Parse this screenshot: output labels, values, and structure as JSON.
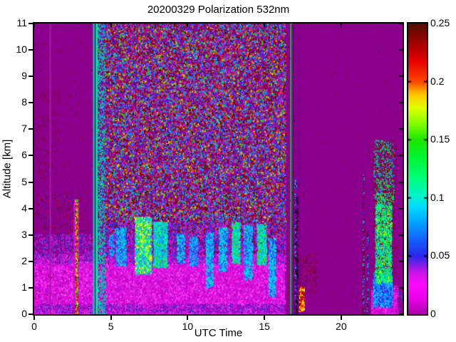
{
  "chart_data": {
    "type": "heatmap",
    "title": "20200329 Polarization 532nm",
    "xlabel": "UTC Time",
    "ylabel": "Altitude [km]",
    "x_range": [
      0,
      24
    ],
    "y_range": [
      0,
      11
    ],
    "x_ticks": [
      0,
      5,
      10,
      15,
      20
    ],
    "x_tick_labels": [
      "0",
      "5",
      "10",
      "15",
      "20"
    ],
    "y_ticks": [
      0,
      1,
      2,
      3,
      4,
      5,
      6,
      7,
      8,
      9,
      10,
      11
    ],
    "y_tick_labels": [
      "0",
      "1",
      "2",
      "3",
      "4",
      "5",
      "6",
      "7",
      "8",
      "9",
      "10",
      "11"
    ],
    "grid": false,
    "background_color": "#8C008E",
    "colorbar": {
      "min": 0,
      "max": 0.25,
      "ticks": [
        0,
        0.05,
        0.1,
        0.15,
        0.2,
        0.25
      ],
      "tick_labels": [
        "0",
        "0.05",
        "0.1",
        "0.15",
        "0.2",
        "0.25"
      ],
      "gradient_stops": [
        [
          0.0,
          "#AA00AA"
        ],
        [
          0.05,
          "#E600E6"
        ],
        [
          0.1,
          "#FF0AFF"
        ],
        [
          0.145,
          "#C814E8"
        ],
        [
          0.2,
          "#2828E8"
        ],
        [
          0.26,
          "#1464FF"
        ],
        [
          0.32,
          "#00A8FF"
        ],
        [
          0.37,
          "#00DCFF"
        ],
        [
          0.41,
          "#00F5C8"
        ],
        [
          0.47,
          "#00FF78"
        ],
        [
          0.54,
          "#00F532"
        ],
        [
          0.6,
          "#1EE600"
        ],
        [
          0.66,
          "#8CFF00"
        ],
        [
          0.71,
          "#E1FF00"
        ],
        [
          0.755,
          "#FFC800"
        ],
        [
          0.8,
          "#FF4600"
        ],
        [
          0.87,
          "#E60000"
        ],
        [
          0.93,
          "#A50000"
        ],
        [
          1.0,
          "#501000"
        ]
      ]
    },
    "regions": [
      {
        "name": "boundary-layer",
        "type": "fill",
        "x": [
          0,
          16.35
        ],
        "y": [
          0,
          2.28
        ],
        "color": "#DE12DE"
      },
      {
        "name": "boundary-layer-mottle",
        "type": "speckle",
        "x": [
          0,
          16.35
        ],
        "y": [
          0,
          2.28
        ],
        "colors": [
          "#EE2CEE",
          "#C800C8",
          "#B414D2",
          "#F046F0"
        ],
        "density": 0.14,
        "size": 2
      },
      {
        "name": "boundary-top-transition",
        "type": "speckle",
        "x": [
          0,
          16.35
        ],
        "y": [
          1.95,
          3.05
        ],
        "colors": [
          "#DE12DE",
          "#8C008E",
          "#6A2ACD",
          "#B022C8",
          "#4433CC"
        ],
        "density": 0.22,
        "size": 2
      },
      {
        "name": "pink-tower",
        "type": "fill",
        "x": [
          2.56,
          2.92
        ],
        "y": [
          0,
          4.35
        ],
        "color": "#CE14CE"
      },
      {
        "name": "surface-blue-band",
        "type": "speckle",
        "x": [
          0,
          16.35
        ],
        "y": [
          0.06,
          0.4
        ],
        "colors": [
          "#2A2ACD",
          "#4416B4",
          "#6A00AA",
          "#2A55E6",
          "#8800AA"
        ],
        "density": 0.35,
        "size": 1
      },
      {
        "name": "left-sparse-speckle",
        "type": "speckle",
        "x": [
          0.05,
          3.95
        ],
        "y": [
          0,
          11
        ],
        "colors": [
          "#5A0000",
          "#8B0000",
          "#320000"
        ],
        "density": 0.013,
        "size": 1
      },
      {
        "name": "left-cluster-mid",
        "type": "speckle",
        "x": [
          0.05,
          1.65
        ],
        "y": [
          5.1,
          8.6
        ],
        "colors": [
          "#5A0000",
          "#8B0000",
          "#3A0000"
        ],
        "density": 0.05,
        "size": 1
      },
      {
        "name": "left-cluster-low",
        "type": "speckle",
        "x": [
          0.05,
          3.2
        ],
        "y": [
          3.15,
          4.6
        ],
        "colors": [
          "#5A0000",
          "#8B0000",
          "#B22222",
          "#2A2ACD"
        ],
        "density": 0.1,
        "size": 1
      },
      {
        "name": "faint-vline-1utc",
        "type": "vline",
        "x": 1.05,
        "width": 2,
        "y": [
          0,
          11
        ],
        "color": "#AD17AD"
      },
      {
        "name": "orange-dust-line",
        "type": "vline_speckle",
        "x": 2.73,
        "width": 3,
        "y": [
          0,
          4.35
        ],
        "colors": [
          "#FFC800",
          "#FF6400",
          "#C80000",
          "#8B0000",
          "#FFFF32",
          "#00C832"
        ],
        "density": 0.75
      },
      {
        "name": "cyan-stripe-a",
        "type": "vline",
        "x": 3.88,
        "width": 2,
        "y": [
          0,
          11
        ],
        "color": "#00DCB4"
      },
      {
        "name": "cyan-stripe-dark",
        "type": "vline",
        "x": 3.98,
        "width": 2,
        "y": [
          0,
          11
        ],
        "color": "#00785A"
      },
      {
        "name": "cyan-stripe-b",
        "type": "vline",
        "x": 4.08,
        "width": 2,
        "y": [
          0,
          11
        ],
        "color": "#00FFB4"
      },
      {
        "name": "cyan-speckle-column",
        "type": "vline_speckle",
        "x": 4.38,
        "width": 11,
        "y": [
          0,
          11
        ],
        "colors": [
          "#00C8E6",
          "#00E6A0",
          "#1E90FF",
          "#8C008E",
          "#2ACD2A",
          "#00AACC"
        ],
        "density": 0.38
      },
      {
        "name": "noise-field",
        "type": "speckle",
        "x": [
          4.6,
          16.35
        ],
        "y": [
          2.95,
          11
        ],
        "colors": [
          "#A0149E",
          "#A0149E",
          "#8C008E",
          "#B03CB4",
          "#8B0000",
          "#8B0000",
          "#600000",
          "#2A2AE6",
          "#4A4AFF",
          "#C828C8",
          "#7A00A0",
          "#00B4E6",
          "#28C828",
          "#C8C800",
          "#E63C00",
          "#1E90FF"
        ],
        "density": 0.45,
        "size": 2
      },
      {
        "name": "noise-bottom-blend",
        "type": "speckle",
        "x": [
          4.6,
          16.35
        ],
        "y": [
          2.3,
          3.5
        ],
        "colors": [
          "#2A2ACD",
          "#6A22BB",
          "#CC22CC",
          "#8B0000",
          "#4433DD",
          "#DE12DE"
        ],
        "density": 0.28,
        "size": 2
      },
      {
        "name": "virga-plume-1",
        "type": "speckle",
        "x": [
          4.85,
          5.15
        ],
        "y": [
          2.2,
          3.0
        ],
        "colors": [
          "#2A55FF",
          "#1E90FF",
          "#00C8FF"
        ],
        "density": 0.35,
        "size": 2
      },
      {
        "name": "virga-plume-2",
        "type": "speckle",
        "x": [
          5.3,
          5.95
        ],
        "y": [
          1.85,
          3.3
        ],
        "colors": [
          "#2A55FF",
          "#00C8FF",
          "#00E6C8",
          "#1E90FF"
        ],
        "density": 0.5,
        "size": 2
      },
      {
        "name": "virga-plume-3",
        "type": "speckle",
        "x": [
          6.55,
          7.6
        ],
        "y": [
          1.55,
          3.7
        ],
        "colors": [
          "#00E6C8",
          "#00FF96",
          "#32CD32",
          "#96FF00",
          "#00C8FF",
          "#FFFF32",
          "#1E90FF"
        ],
        "density": 0.8,
        "size": 2
      },
      {
        "name": "virga-plume-4",
        "type": "speckle",
        "x": [
          7.75,
          8.62
        ],
        "y": [
          1.8,
          3.5
        ],
        "colors": [
          "#00E6C8",
          "#00FF96",
          "#00C8FF",
          "#32CD32",
          "#1E90FF"
        ],
        "density": 0.7,
        "size": 2
      },
      {
        "name": "virga-plume-5",
        "type": "speckle",
        "x": [
          9.28,
          9.78
        ],
        "y": [
          1.95,
          3.1
        ],
        "colors": [
          "#2A55FF",
          "#00C8FF",
          "#00E6C8"
        ],
        "density": 0.45,
        "size": 2
      },
      {
        "name": "virga-plume-6",
        "type": "speckle",
        "x": [
          10.1,
          10.62
        ],
        "y": [
          1.85,
          2.95
        ],
        "colors": [
          "#2A55FF",
          "#1E90FF",
          "#00C8FF"
        ],
        "density": 0.45,
        "size": 2
      },
      {
        "name": "virga-plume-7",
        "type": "speckle",
        "x": [
          11.15,
          11.62
        ],
        "y": [
          1.05,
          3.1
        ],
        "colors": [
          "#2A55FF",
          "#00C8FF",
          "#00E6C8",
          "#1E90FF"
        ],
        "density": 0.5,
        "size": 2
      },
      {
        "name": "virga-plume-8",
        "type": "speckle",
        "x": [
          12.0,
          12.52
        ],
        "y": [
          1.65,
          3.3
        ],
        "colors": [
          "#2A55FF",
          "#00C8FF",
          "#00E6C8"
        ],
        "density": 0.5,
        "size": 2
      },
      {
        "name": "virga-plume-9",
        "type": "speckle",
        "x": [
          12.85,
          13.38
        ],
        "y": [
          1.95,
          3.5
        ],
        "colors": [
          "#00E6C8",
          "#00FF96",
          "#00C8FF",
          "#32CD32"
        ],
        "density": 0.55,
        "size": 2
      },
      {
        "name": "virga-plume-10",
        "type": "speckle",
        "x": [
          13.62,
          14.18
        ],
        "y": [
          1.35,
          3.4
        ],
        "colors": [
          "#2A55FF",
          "#00C8FF",
          "#00E6C8",
          "#1E90FF"
        ],
        "density": 0.5,
        "size": 2
      },
      {
        "name": "virga-plume-11",
        "type": "speckle",
        "x": [
          14.5,
          15.08
        ],
        "y": [
          1.9,
          3.42
        ],
        "colors": [
          "#00E6C8",
          "#00FF96",
          "#00C8FF",
          "#32CD32"
        ],
        "density": 0.55,
        "size": 2
      },
      {
        "name": "virga-plume-12",
        "type": "speckle",
        "x": [
          15.25,
          15.68
        ],
        "y": [
          0.7,
          2.9
        ],
        "colors": [
          "#2A55FF",
          "#00C8FF",
          "#00E6C8"
        ],
        "density": 0.5,
        "size": 2
      },
      {
        "name": "green-vline-1640",
        "type": "vline",
        "x": 16.72,
        "width": 2,
        "y": [
          0,
          11
        ],
        "color": "#00C832"
      },
      {
        "name": "dark-vline-a",
        "type": "vline",
        "x": 16.9,
        "width": 2,
        "y": [
          0,
          11
        ],
        "color": "#6E0082"
      },
      {
        "name": "blue-speckle-line-17",
        "type": "vline_speckle",
        "x": 17.0,
        "width": 2,
        "y": [
          0,
          5.2
        ],
        "colors": [
          "#00C8FF",
          "#2A2AE6",
          "#000000"
        ],
        "density": 0.4
      },
      {
        "name": "black-speckle-line-17",
        "type": "vline_speckle",
        "x": 17.1,
        "width": 2,
        "y": [
          0,
          4.5
        ],
        "colors": [
          "#1A001A",
          "#000000",
          "#8C008E",
          "#5A0000"
        ],
        "density": 0.5
      },
      {
        "name": "dark-vline-b",
        "type": "vline",
        "x": 17.28,
        "width": 2,
        "y": [
          0,
          11
        ],
        "color": "#7A008C"
      },
      {
        "name": "orange-blob-low",
        "type": "speckle",
        "x": [
          17.25,
          17.55
        ],
        "y": [
          0.15,
          1.05
        ],
        "colors": [
          "#FFC800",
          "#FF6400",
          "#E60000",
          "#FFFF32",
          "#8B0000"
        ],
        "density": 0.8,
        "size": 2
      },
      {
        "name": "post-gap-darkred-cluster",
        "type": "speckle",
        "x": [
          17.25,
          18.45
        ],
        "y": [
          0.8,
          2.3
        ],
        "colors": [
          "#5A0000",
          "#8B0000",
          "#320000",
          "#B22222"
        ],
        "density": 0.14,
        "size": 1
      },
      {
        "name": "right-sparse-speckle",
        "type": "speckle",
        "x": [
          16.5,
          24
        ],
        "y": [
          0,
          11
        ],
        "colors": [
          "#5A0000",
          "#8B0000",
          "#2A0033"
        ],
        "density": 0.005,
        "size": 1
      },
      {
        "name": "thin-speckle-line-2140",
        "type": "vline_speckle",
        "x": 21.42,
        "width": 2,
        "y": [
          0,
          5.3
        ],
        "colors": [
          "#2A2ACD",
          "#00B4E6",
          "#8B0000",
          "#5A0000"
        ],
        "density": 0.45
      },
      {
        "name": "thin-speckle-line-2170",
        "type": "vline_speckle",
        "x": 21.68,
        "width": 2,
        "y": [
          0,
          3.2
        ],
        "colors": [
          "#2A2ACD",
          "#00B4E6",
          "#5A0000"
        ],
        "density": 0.35
      },
      {
        "name": "evening-plume-pink-base",
        "type": "fill",
        "x": [
          21.95,
          23.68
        ],
        "y": [
          0,
          0.92
        ],
        "color": "#DE12DE"
      },
      {
        "name": "evening-plume-pink-mottle",
        "type": "speckle",
        "x": [
          21.95,
          23.68
        ],
        "y": [
          0,
          1.1
        ],
        "colors": [
          "#EE2CEE",
          "#C800C8",
          "#B414D2"
        ],
        "density": 0.15,
        "size": 2
      },
      {
        "name": "evening-plume-blue",
        "type": "speckle",
        "x": [
          22.05,
          23.3
        ],
        "y": [
          0.3,
          1.6
        ],
        "colors": [
          "#1E50FF",
          "#00AAFF",
          "#2A2AE6",
          "#00DCFF"
        ],
        "density": 0.6,
        "size": 2
      },
      {
        "name": "evening-plume-green",
        "type": "speckle",
        "x": [
          22.2,
          23.25
        ],
        "y": [
          1.2,
          4.6
        ],
        "colors": [
          "#00E664",
          "#32CD32",
          "#00FF96",
          "#00C8B4",
          "#96FF00",
          "#00E6C8"
        ],
        "density": 0.55,
        "size": 2
      },
      {
        "name": "evening-plume-upper",
        "type": "speckle",
        "x": [
          22.1,
          23.4
        ],
        "y": [
          4.2,
          6.6
        ],
        "colors": [
          "#00C878",
          "#8B0000",
          "#00AAE6",
          "#32CD32",
          "#8C008E",
          "#8C008E"
        ],
        "density": 0.3,
        "size": 2
      },
      {
        "name": "evening-plume-darkred",
        "type": "speckle",
        "x": [
          21.95,
          23.6
        ],
        "y": [
          1.5,
          6.6
        ],
        "colors": [
          "#5A0000",
          "#8B0000"
        ],
        "density": 0.08,
        "size": 1
      },
      {
        "name": "corner-blue-specks",
        "type": "speckle",
        "x": [
          23.7,
          24
        ],
        "y": [
          0,
          0.9
        ],
        "colors": [
          "#2A2ACD",
          "#00AAFF"
        ],
        "density": 0.15,
        "size": 1
      }
    ]
  }
}
